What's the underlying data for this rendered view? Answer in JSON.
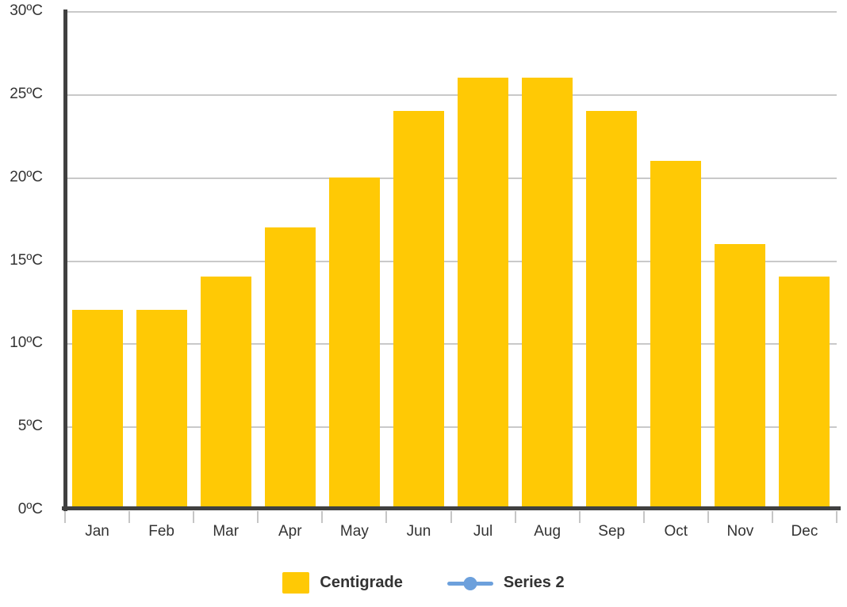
{
  "chart_data": {
    "type": "bar",
    "title": "",
    "xlabel": "",
    "ylabel": "",
    "categories": [
      "Jan",
      "Feb",
      "Mar",
      "Apr",
      "May",
      "Jun",
      "Jul",
      "Aug",
      "Sep",
      "Oct",
      "Nov",
      "Dec"
    ],
    "series": [
      {
        "name": "Centigrade",
        "type": "bar",
        "color": "#FFC905",
        "values": [
          12,
          12,
          14,
          17,
          20,
          24,
          26,
          26,
          24,
          21,
          16,
          14
        ]
      },
      {
        "name": "Series 2",
        "type": "line",
        "color": "#6CA0DC",
        "values": []
      }
    ],
    "ylim": [
      0,
      30
    ],
    "y_tick_step": 5,
    "y_tick_labels": [
      "0ºC",
      "5ºC",
      "10ºC",
      "15ºC",
      "20ºC",
      "25ºC",
      "30ºC"
    ],
    "grid": true,
    "legend_position": "bottom"
  },
  "legend": {
    "items": [
      {
        "label": "Centigrade",
        "swatch": "square",
        "color": "#FFC905"
      },
      {
        "label": "Series 2",
        "swatch": "line-dot",
        "color": "#6CA0DC"
      }
    ]
  },
  "colors": {
    "bar": "#FFC905",
    "series2": "#6CA0DC",
    "axis": "#404040",
    "gridline": "#C9C9C9",
    "tick": "#C6C6C6",
    "text": "#333333",
    "background": "#FFFFFF"
  }
}
